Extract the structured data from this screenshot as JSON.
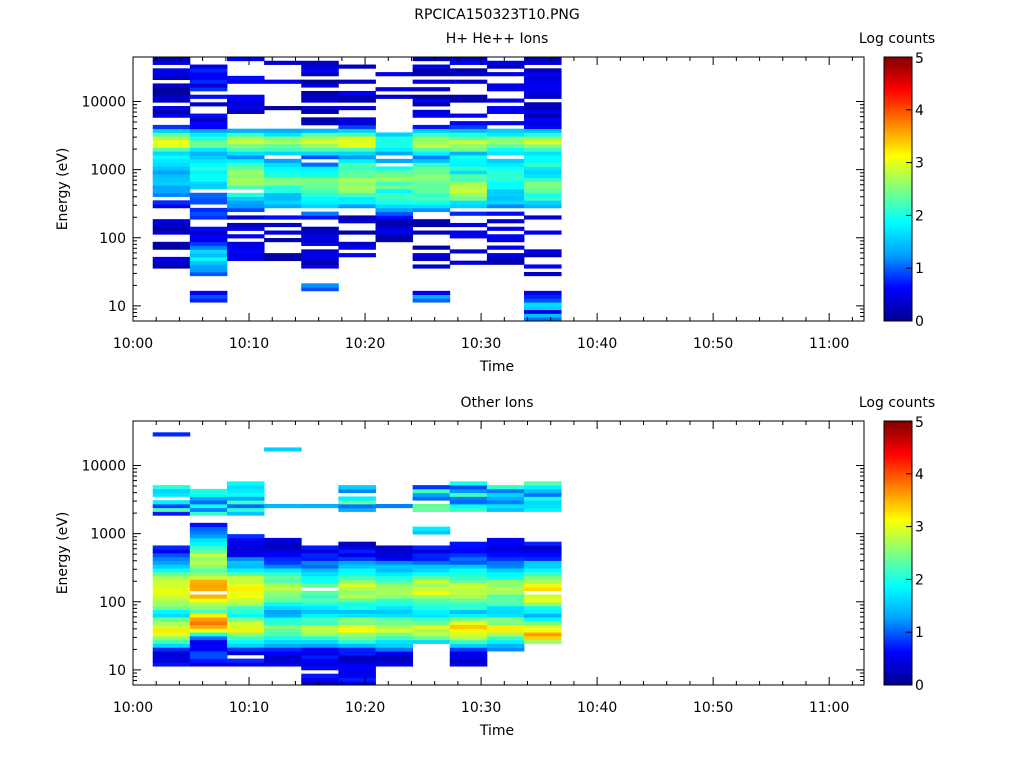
{
  "figure_title": "RPCICA150323T10.PNG",
  "colormap": [
    "#00008f",
    "#0000ff",
    "#00a0ff",
    "#00ffff",
    "#7fff7f",
    "#ffff00",
    "#ff8000",
    "#ff0000",
    "#800000"
  ],
  "chart_data": [
    {
      "type": "heatmap",
      "title": "H+ He++ Ions",
      "xlabel": "Time",
      "ylabel": "Energy (eV)",
      "colorbar_label": "Log counts",
      "x_ticks": [
        "10:00",
        "10:10",
        "10:20",
        "10:30",
        "10:40",
        "10:50",
        "11:00"
      ],
      "y_ticks": [
        "10",
        "100",
        "1000",
        "10000"
      ],
      "colorbar_ticks": [
        "0",
        "1",
        "2",
        "3",
        "4",
        "5"
      ],
      "y_scale": "log",
      "ylim": [
        6,
        45000
      ],
      "xlim_minutes": [
        0,
        63
      ],
      "clim": [
        0,
        5
      ],
      "time_bins_start_minutes": [
        1.7,
        4.9,
        8.1,
        11.3,
        14.5,
        17.7,
        20.9,
        24.1,
        27.3,
        30.5,
        33.7
      ],
      "time_bin_width_minutes": 3.2,
      "columns": [
        {
          "min_eV": 28,
          "max_eV": 45000,
          "peaks": [
            [
              2500,
              3.0,
              0.15
            ],
            [
              1500,
              1.8,
              0.25
            ],
            [
              700,
              1.5,
              0.3
            ]
          ],
          "base": 0.3,
          "density": 0.55,
          "extra": []
        },
        {
          "min_eV": 28,
          "max_eV": 35000,
          "peaks": [
            [
              2500,
              2.4,
              0.15
            ],
            [
              1000,
              2.0,
              0.35
            ],
            [
              50,
              1.6,
              0.2
            ],
            [
              400,
              1.2,
              0.3
            ]
          ],
          "base": 0.6,
          "density": 0.85,
          "extra": [
            [
              11,
              16,
              0.2
            ]
          ]
        },
        {
          "min_eV": 28,
          "max_eV": 45000,
          "peaks": [
            [
              2500,
              2.8,
              0.15
            ],
            [
              800,
              2.6,
              0.25
            ],
            [
              500,
              2.0,
              0.2
            ]
          ],
          "base": 0.4,
          "density": 0.6,
          "extra": []
        },
        {
          "min_eV": 40,
          "max_eV": 40000,
          "peaks": [
            [
              2500,
              2.5,
              0.15
            ],
            [
              700,
              2.4,
              0.25
            ],
            [
              350,
              1.5,
              0.2
            ]
          ],
          "base": 0.35,
          "density": 0.45,
          "extra": []
        },
        {
          "min_eV": 33,
          "max_eV": 45000,
          "peaks": [
            [
              2500,
              2.9,
              0.15
            ],
            [
              600,
              2.6,
              0.25
            ],
            [
              400,
              2.0,
              0.2
            ]
          ],
          "base": 0.35,
          "density": 0.5,
          "extra": [
            [
              17,
              21,
              0.3
            ]
          ]
        },
        {
          "min_eV": 33,
          "max_eV": 45000,
          "peaks": [
            [
              2500,
              3.0,
              0.15
            ],
            [
              600,
              2.8,
              0.25
            ],
            [
              1000,
              2.2,
              0.2
            ]
          ],
          "base": 0.35,
          "density": 0.55,
          "extra": []
        },
        {
          "min_eV": 80,
          "max_eV": 40000,
          "peaks": [
            [
              2500,
              2.2,
              0.15
            ],
            [
              700,
              2.4,
              0.3
            ],
            [
              400,
              2.0,
              0.2
            ]
          ],
          "base": 0.35,
          "density": 0.55,
          "extra": []
        },
        {
          "min_eV": 30,
          "max_eV": 45000,
          "peaks": [
            [
              2500,
              2.8,
              0.15
            ],
            [
              700,
              2.6,
              0.3
            ],
            [
              450,
              2.4,
              0.2
            ]
          ],
          "base": 0.3,
          "density": 0.5,
          "extra": [
            [
              11,
              16,
              0.25
            ]
          ]
        },
        {
          "min_eV": 28,
          "max_eV": 45000,
          "peaks": [
            [
              2500,
              2.8,
              0.15
            ],
            [
              550,
              2.7,
              0.25
            ],
            [
              1200,
              2.0,
              0.2
            ]
          ],
          "base": 0.4,
          "density": 0.6,
          "extra": []
        },
        {
          "min_eV": 35,
          "max_eV": 45000,
          "peaks": [
            [
              2500,
              2.6,
              0.15
            ],
            [
              800,
              2.0,
              0.3
            ],
            [
              450,
              1.8,
              0.2
            ]
          ],
          "base": 0.4,
          "density": 0.55,
          "extra": []
        },
        {
          "min_eV": 28,
          "max_eV": 45000,
          "peaks": [
            [
              2500,
              2.9,
              0.15
            ],
            [
              550,
              2.4,
              0.25
            ],
            [
              1300,
              2.0,
              0.2
            ]
          ],
          "base": 0.4,
          "density": 0.6,
          "extra": [
            [
              6,
              16,
              0.2
            ]
          ]
        }
      ]
    },
    {
      "type": "heatmap",
      "title": "Other Ions",
      "xlabel": "Time",
      "ylabel": "Energy (eV)",
      "colorbar_label": "Log counts",
      "x_ticks": [
        "10:00",
        "10:10",
        "10:20",
        "10:30",
        "10:40",
        "10:50",
        "11:00"
      ],
      "y_ticks": [
        "10",
        "100",
        "1000",
        "10000"
      ],
      "colorbar_ticks": [
        "0",
        "1",
        "2",
        "3",
        "4",
        "5"
      ],
      "y_scale": "log",
      "ylim": [
        6,
        45000
      ],
      "xlim_minutes": [
        0,
        63
      ],
      "clim": [
        0,
        5
      ],
      "time_bins_start_minutes": [
        1.7,
        4.9,
        8.1,
        11.3,
        14.5,
        17.7,
        20.9,
        24.1,
        27.3,
        30.5,
        33.7
      ],
      "time_bin_width_minutes": 3.2,
      "columns": [
        {
          "min_eV": 11,
          "max_eV": 700,
          "peaks": [
            [
              150,
              3.2,
              0.3
            ],
            [
              40,
              3.0,
              0.2
            ]
          ],
          "base": 0.6,
          "density": 0.95,
          "extra": [
            [
              1800,
              6000,
              0.7
            ],
            [
              27000,
              30000,
              0.2
            ]
          ]
        },
        {
          "min_eV": 11,
          "max_eV": 1500,
          "peaks": [
            [
              150,
              3.6,
              0.3
            ],
            [
              50,
              4.0,
              0.15
            ],
            [
              400,
              2.8,
              0.3
            ]
          ],
          "base": 0.7,
          "density": 0.95,
          "extra": [
            [
              1800,
              6000,
              0.9
            ]
          ]
        },
        {
          "min_eV": 11,
          "max_eV": 1000,
          "peaks": [
            [
              150,
              3.2,
              0.3
            ],
            [
              40,
              3.0,
              0.2
            ]
          ],
          "base": 0.6,
          "density": 0.95,
          "extra": [
            [
              1800,
              5500,
              0.6
            ]
          ]
        },
        {
          "min_eV": 11,
          "max_eV": 900,
          "peaks": [
            [
              150,
              2.6,
              0.3
            ],
            [
              40,
              2.4,
              0.2
            ]
          ],
          "base": 0.5,
          "density": 0.95,
          "extra": [
            [
              2400,
              2700,
              0.5
            ],
            [
              16000,
              17500,
              0.2
            ]
          ]
        },
        {
          "min_eV": 6,
          "max_eV": 700,
          "peaks": [
            [
              150,
              2.4,
              0.3
            ],
            [
              40,
              2.6,
              0.2
            ]
          ],
          "base": 0.5,
          "density": 0.95,
          "extra": [
            [
              2300,
              2600,
              0.2
            ]
          ]
        },
        {
          "min_eV": 6,
          "max_eV": 800,
          "peaks": [
            [
              150,
              2.8,
              0.3
            ],
            [
              40,
              3.0,
              0.2
            ]
          ],
          "base": 0.5,
          "density": 0.95,
          "extra": [
            [
              2000,
              6000,
              0.8
            ]
          ]
        },
        {
          "min_eV": 11,
          "max_eV": 650,
          "peaks": [
            [
              150,
              2.6,
              0.3
            ],
            [
              40,
              2.8,
              0.2
            ]
          ],
          "base": 0.4,
          "density": 0.95,
          "extra": [
            [
              2500,
              2800,
              0.9
            ]
          ]
        },
        {
          "min_eV": 25,
          "max_eV": 700,
          "peaks": [
            [
              150,
              2.9,
              0.3
            ],
            [
              40,
              2.8,
              0.2
            ]
          ],
          "base": 0.5,
          "density": 0.95,
          "extra": [
            [
              1000,
              1300,
              0.3
            ],
            [
              2000,
              6000,
              0.8
            ]
          ]
        },
        {
          "min_eV": 11,
          "max_eV": 800,
          "peaks": [
            [
              150,
              2.8,
              0.3
            ],
            [
              40,
              3.2,
              0.2
            ]
          ],
          "base": 0.5,
          "density": 0.95,
          "extra": [
            [
              2000,
              6000,
              0.8
            ]
          ]
        },
        {
          "min_eV": 18,
          "max_eV": 900,
          "peaks": [
            [
              150,
              2.6,
              0.3
            ],
            [
              40,
              3.0,
              0.2
            ]
          ],
          "base": 0.5,
          "density": 0.95,
          "extra": [
            [
              2000,
              6000,
              0.8
            ]
          ]
        },
        {
          "min_eV": 23,
          "max_eV": 800,
          "peaks": [
            [
              150,
              3.2,
              0.3
            ],
            [
              35,
              3.4,
              0.2
            ]
          ],
          "base": 0.5,
          "density": 0.95,
          "extra": [
            [
              2000,
              6000,
              0.9
            ]
          ]
        }
      ]
    }
  ]
}
